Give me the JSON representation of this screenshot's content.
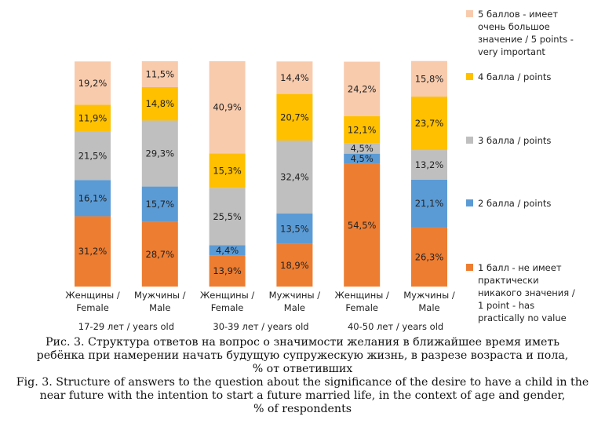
{
  "chart_data": {
    "type": "bar",
    "stacked": true,
    "categories": [
      [
        "Женщины /",
        "Female"
      ],
      [
        "Мужчины /",
        "Male"
      ],
      [
        "Женщины /",
        "Female"
      ],
      [
        "Мужчины /",
        "Male"
      ],
      [
        "Женщины /",
        "Female"
      ],
      [
        "Мужчины /",
        "Male"
      ]
    ],
    "groups": [
      "17-29 лет / years old",
      "30-39 лет / years old",
      "40-50 лет / years old"
    ],
    "series": [
      {
        "name": [
          "1 балл - не имеет",
          "практически",
          "никакого значения /",
          "1 point - has",
          "practically no value"
        ],
        "color": "#ED7D31",
        "values": [
          31.2,
          28.7,
          13.9,
          18.9,
          54.5,
          26.3
        ],
        "labels": [
          "31,2%",
          "28,7%",
          "13,9%",
          "18,9%",
          "54,5%",
          "26,3%"
        ]
      },
      {
        "name": [
          "2 балла / points"
        ],
        "color": "#5B9BD5",
        "values": [
          16.1,
          15.7,
          4.4,
          13.5,
          4.5,
          21.1
        ],
        "labels": [
          "16,1%",
          "15,7%",
          "4,4%",
          "13,5%",
          "4,5%",
          "21,1%"
        ]
      },
      {
        "name": [
          "3 балла / points"
        ],
        "color": "#BFBFBF",
        "values": [
          21.5,
          29.3,
          25.5,
          32.4,
          4.5,
          13.2
        ],
        "labels": [
          "21,5%",
          "29,3%",
          "25,5%",
          "32,4%",
          "4,5%",
          "13,2%"
        ]
      },
      {
        "name": [
          "4 балла / points"
        ],
        "color": "#FFC000",
        "values": [
          11.9,
          14.8,
          15.3,
          20.7,
          12.1,
          23.7
        ],
        "labels": [
          "11,9%",
          "14,8%",
          "15,3%",
          "20,7%",
          "12,1%",
          "23,7%"
        ]
      },
      {
        "name": [
          "5 баллов - имеет",
          "очень большое",
          "значение / 5 points -",
          "very important"
        ],
        "color": "#F8CBAD",
        "values": [
          19.2,
          11.5,
          40.9,
          14.4,
          24.2,
          15.8
        ],
        "labels": [
          "19,2%",
          "11,5%",
          "40,9%",
          "14,4%",
          "24,2%",
          "15,8%"
        ]
      }
    ],
    "ylim": [
      0,
      100
    ],
    "grid": false,
    "legend": "right"
  },
  "caption": {
    "line1": "Рис. 3. Структура ответов на вопрос о значимости желания в ближайшее время иметь",
    "line2": "ребёнка при намерении начать будущую супружескую жизнь, в разрезе возраста и пола,",
    "line3": "% от ответивших",
    "line4": "Fig. 3. Structure of answers to the question about the significance of the desire to have a child in the",
    "line5": "near future with the intention to start a future married life, in the context of age and gender,",
    "line6": "% of respondents"
  }
}
